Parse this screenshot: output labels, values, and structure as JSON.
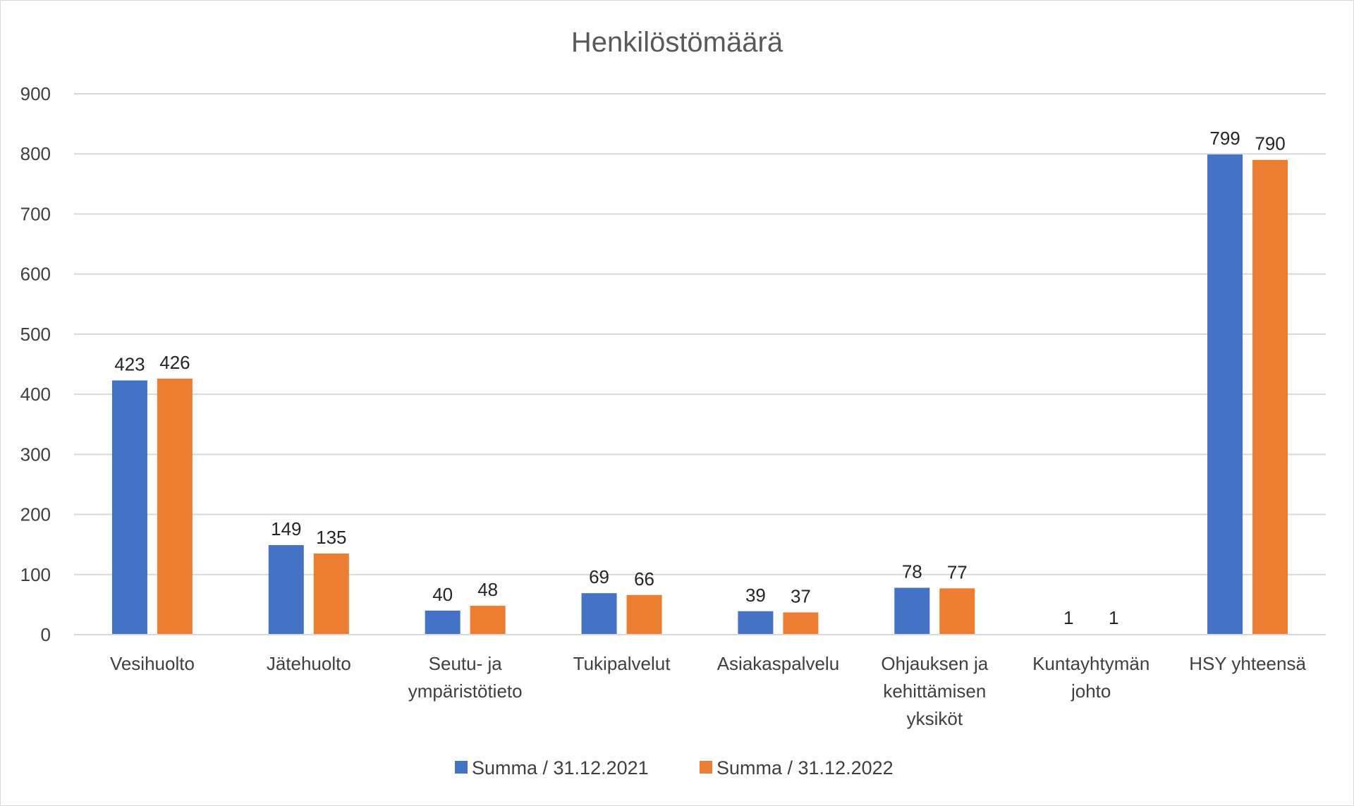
{
  "chart_data": {
    "type": "bar",
    "title": "Henkilöstömäärä",
    "categories": [
      [
        "Vesihuolto"
      ],
      [
        "Jätehuolto"
      ],
      [
        "Seutu- ja",
        "ympäristötieto"
      ],
      [
        "Tukipalvelut"
      ],
      [
        "Asiakaspalvelu"
      ],
      [
        "Ohjauksen ja",
        "kehittämisen",
        "yksiköt"
      ],
      [
        "Kuntayhtymän",
        "johto"
      ],
      [
        "HSY yhteensä"
      ]
    ],
    "series": [
      {
        "name": "Summa / 31.12.2021",
        "color": "#4472C4",
        "values": [
          423,
          149,
          40,
          69,
          39,
          78,
          1,
          799
        ]
      },
      {
        "name": "Summa / 31.12.2022",
        "color": "#ED7D31",
        "values": [
          426,
          135,
          48,
          66,
          37,
          77,
          1,
          790
        ]
      }
    ],
    "ylim": [
      0,
      900
    ],
    "yticks": [
      0,
      100,
      200,
      300,
      400,
      500,
      600,
      700,
      800,
      900
    ],
    "xlabel": "",
    "ylabel": "",
    "grid": true,
    "legend": "bottom-center",
    "data_labels": true
  }
}
